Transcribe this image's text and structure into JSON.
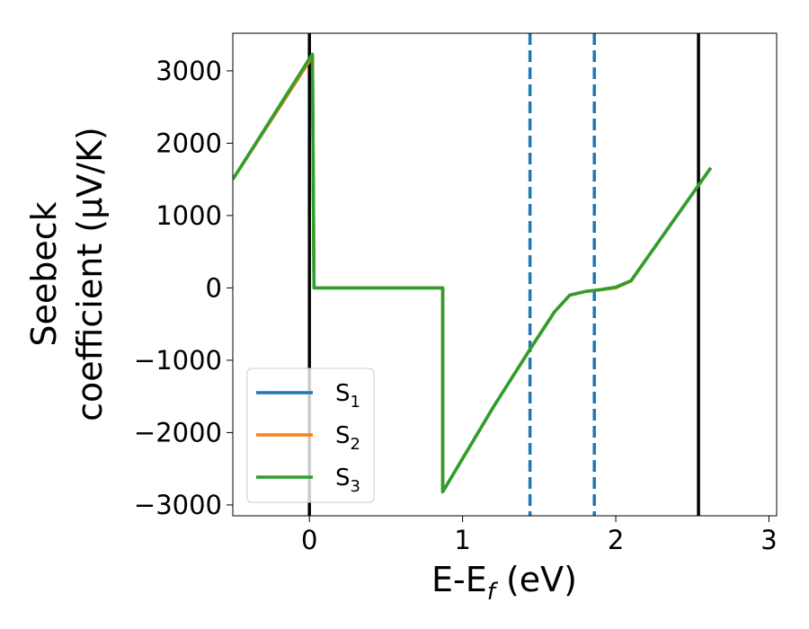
{
  "chart_data": {
    "type": "line",
    "title": "",
    "xlabel": "E-E",
    "xlabel_sub": "f",
    "xlabel_unit": " (eV)",
    "ylabel_line1": "Seebeck",
    "ylabel_line2": "coefficient  (μV/K)",
    "xlim": [
      -0.5,
      3.05
    ],
    "ylim": [
      -3150,
      3520
    ],
    "xticks": [
      0,
      1,
      2,
      3
    ],
    "xtick_labels": [
      "0",
      "1",
      "2",
      "3"
    ],
    "yticks": [
      3000,
      2000,
      1000,
      0,
      -1000,
      -2000,
      -3000
    ],
    "ytick_labels": [
      "3000",
      "2000",
      "1000",
      "0",
      "−1000",
      "−2000",
      "−3000"
    ],
    "grid": false,
    "legend_position": "lower-left",
    "vlines": [
      {
        "x": 0.0,
        "style": "solid",
        "color": "#000000"
      },
      {
        "x": 2.54,
        "style": "solid",
        "color": "#000000"
      },
      {
        "x": 1.44,
        "style": "dashed",
        "color": "#1f77b4"
      },
      {
        "x": 1.86,
        "style": "dashed",
        "color": "#1f77b4"
      }
    ],
    "series": [
      {
        "name": "S",
        "sub": "1",
        "color": "#1f77b4",
        "x": [
          -0.5,
          0.02,
          0.02,
          0.03,
          0.87,
          0.87,
          1.0,
          1.2,
          1.44,
          1.6,
          1.7,
          1.8,
          1.9,
          2.0,
          2.1,
          2.2,
          2.54,
          2.62
        ],
        "y": [
          1500,
          3200,
          3200,
          0,
          0,
          -2820,
          -2360,
          -1650,
          -850,
          -330,
          -100,
          -50,
          -25,
          10,
          100,
          400,
          1420,
          1660
        ]
      },
      {
        "name": "S",
        "sub": "2",
        "color": "#ff7f0e",
        "x": [
          -0.5,
          0.02,
          0.02,
          0.03,
          0.87,
          0.87,
          1.0,
          1.2,
          1.44,
          1.6,
          1.7,
          1.8,
          1.9,
          2.0,
          2.1,
          2.2,
          2.54,
          2.62
        ],
        "y": [
          1500,
          3200,
          3200,
          0,
          0,
          -2820,
          -2360,
          -1650,
          -850,
          -330,
          -100,
          -50,
          -25,
          0,
          95,
          400,
          1420,
          1660
        ]
      },
      {
        "name": "S",
        "sub": "3",
        "color": "#2ca02c",
        "x": [
          -0.5,
          0.0,
          0.02,
          0.03,
          0.87,
          0.87,
          1.0,
          1.2,
          1.44,
          1.6,
          1.7,
          1.8,
          1.9,
          2.0,
          2.1,
          2.2,
          2.54,
          2.62
        ],
        "y": [
          1500,
          3170,
          3230,
          0,
          0,
          -2820,
          -2360,
          -1650,
          -850,
          -330,
          -100,
          -50,
          -25,
          10,
          100,
          400,
          1420,
          1660
        ]
      }
    ]
  }
}
